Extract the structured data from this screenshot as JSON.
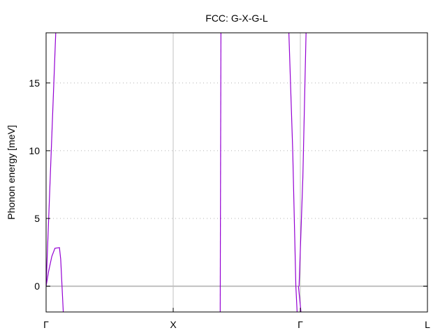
{
  "chart_data": {
    "type": "line",
    "title": "FCC: G-X-G-L",
    "xlabel": "",
    "ylabel": "Phonon energy [meV]",
    "xlim": [
      0,
      3
    ],
    "ylim": [
      -1.9,
      18.7
    ],
    "yticks": [
      0,
      5,
      10,
      15
    ],
    "xticks": [
      {
        "x": 0,
        "label": "Γ"
      },
      {
        "x": 1,
        "label": "X"
      },
      {
        "x": 2,
        "label": "Γ"
      },
      {
        "x": 3,
        "label": "L"
      }
    ],
    "vlines": [
      1,
      2
    ],
    "zero_line": 0,
    "grid": "horizontal dotted",
    "legend": "none",
    "series": [
      {
        "color": "#9400d3",
        "points": [
          [
            0,
            0
          ],
          [
            0.076,
            18.7
          ]
        ]
      },
      {
        "color": "#9400d3",
        "points": [
          [
            0,
            0
          ],
          [
            0.02,
            1.1
          ],
          [
            0.045,
            2.2
          ],
          [
            0.07,
            2.8
          ],
          [
            0.105,
            2.85
          ],
          [
            0.115,
            2.0
          ],
          [
            0.135,
            -1.9
          ]
        ]
      },
      {
        "color": "#9400d3",
        "points": [
          [
            1.37,
            -1.9
          ],
          [
            1.375,
            18.7
          ]
        ]
      },
      {
        "color": "#9400d3",
        "points": [
          [
            1.91,
            18.7
          ],
          [
            1.94,
            10.0
          ],
          [
            1.965,
            0.0
          ],
          [
            1.975,
            -1.9
          ]
        ]
      },
      {
        "color": "#9400d3",
        "points": [
          [
            1.985,
            0.0
          ],
          [
            2.005,
            -1.9
          ]
        ]
      },
      {
        "color": "#9400d3",
        "points": [
          [
            1.99,
            0.0
          ],
          [
            2.02,
            8.0
          ],
          [
            2.045,
            18.7
          ]
        ]
      }
    ]
  }
}
